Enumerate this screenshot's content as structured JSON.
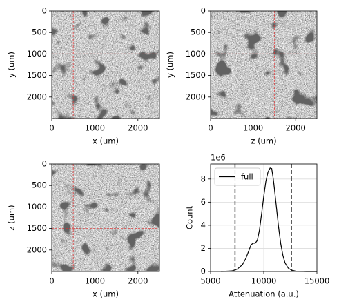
{
  "chart_data": [
    {
      "type": "image",
      "xlabel": "x (um)",
      "ylabel": "y (um)",
      "xlim": [
        0,
        2500
      ],
      "ylim": [
        2500,
        0
      ],
      "xticks": [
        0,
        1000,
        2000
      ],
      "yticks": [
        0,
        500,
        1000,
        1500,
        2000
      ],
      "vlines": [
        500
      ],
      "hlines": [
        1000
      ],
      "line_color": "#e03030"
    },
    {
      "type": "image",
      "xlabel": "z (um)",
      "ylabel": "y (um)",
      "xlim": [
        0,
        2500
      ],
      "ylim": [
        2500,
        0
      ],
      "xticks": [
        0,
        1000,
        2000
      ],
      "yticks": [
        0,
        500,
        1000,
        1500,
        2000
      ],
      "vlines": [
        1500
      ],
      "hlines": [
        1000
      ],
      "line_color": "#e03030"
    },
    {
      "type": "image",
      "xlabel": "x (um)",
      "ylabel": "z (um)",
      "xlim": [
        0,
        2500
      ],
      "ylim": [
        2500,
        0
      ],
      "xticks": [
        0,
        1000,
        2000
      ],
      "yticks": [
        0,
        500,
        1000,
        1500,
        2000
      ],
      "vlines": [
        500
      ],
      "hlines": [
        1500
      ],
      "line_color": "#e03030"
    },
    {
      "type": "line",
      "xlabel": "Attenuation (a.u.)",
      "ylabel": "Count",
      "y_offset_label": "1e6",
      "xlim": [
        5000,
        15000
      ],
      "ylim": [
        0,
        9.3
      ],
      "xticks": [
        5000,
        10000,
        15000
      ],
      "yticks": [
        0,
        2,
        4,
        6,
        8
      ],
      "grid": true,
      "legend": "upper left",
      "x": [
        6000,
        7000,
        7500,
        8000,
        8300,
        8600,
        8800,
        9000,
        9200,
        9400,
        9600,
        9800,
        10000,
        10200,
        10400,
        10600,
        10750,
        10900,
        11000,
        11200,
        11400,
        11600,
        11800,
        12000,
        12300,
        12600,
        13000,
        14000,
        15000
      ],
      "series": [
        {
          "name": "full",
          "color": "#000000",
          "values": [
            0,
            0.05,
            0.2,
            0.6,
            1.1,
            1.8,
            2.3,
            2.45,
            2.45,
            2.7,
            3.6,
            5.0,
            6.5,
            7.8,
            8.6,
            8.95,
            8.9,
            8.0,
            7.2,
            5.5,
            3.8,
            2.4,
            1.4,
            0.75,
            0.3,
            0.12,
            0.03,
            0,
            0
          ]
        }
      ],
      "vlines": [
        7300,
        12600
      ],
      "line_color": "#333333"
    }
  ]
}
